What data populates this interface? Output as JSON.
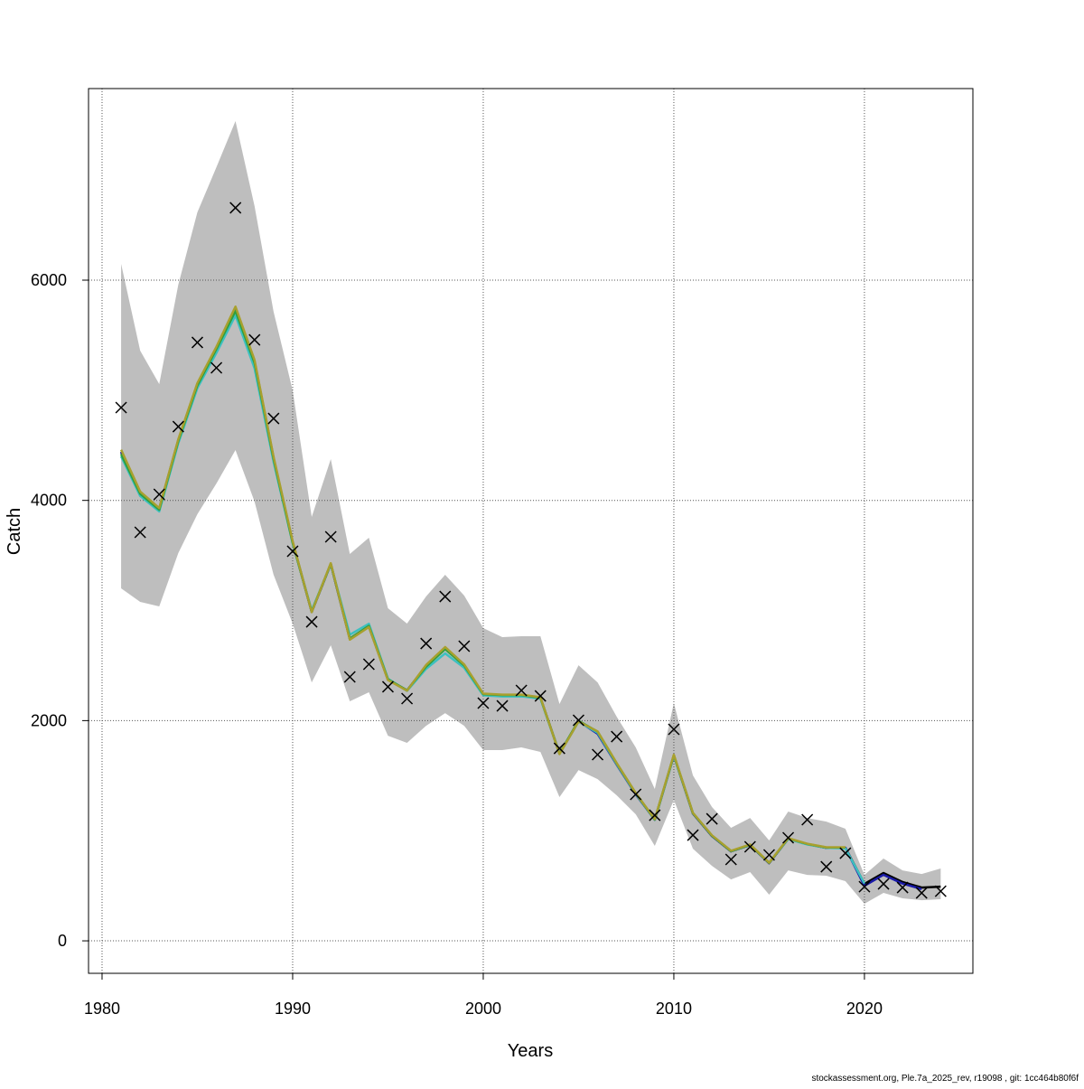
{
  "chart_data": {
    "type": "line",
    "xlabel": "Years",
    "ylabel": "Catch",
    "footnote": "stockassessment.org, Ple.7a_2025_rev, r19098 , git: 1cc464b80f6f",
    "x": [
      1981,
      1982,
      1983,
      1984,
      1985,
      1986,
      1987,
      1988,
      1989,
      1990,
      1991,
      1992,
      1993,
      1994,
      1995,
      1996,
      1997,
      1998,
      1999,
      2000,
      2001,
      2002,
      2003,
      2004,
      2005,
      2006,
      2007,
      2008,
      2009,
      2010,
      2011,
      2012,
      2013,
      2014,
      2015,
      2016,
      2017,
      2018,
      2019,
      2020,
      2021,
      2022,
      2023,
      2024
    ],
    "xlim": [
      1979.29,
      2025.69
    ],
    "xticks": [
      1980,
      1990,
      2000,
      2010,
      2020
    ],
    "ylim": [
      -295,
      7740
    ],
    "yticks": [
      0,
      2000,
      4000,
      6000
    ],
    "grid": true,
    "band": {
      "color": "#bebebe",
      "upper": [
        6148,
        5360,
        5056,
        5959,
        6616,
        7026,
        7445,
        6673,
        5713,
        4999,
        3850,
        4375,
        3513,
        3661,
        3021,
        2881,
        3127,
        3324,
        3136,
        2840,
        2758,
        2766,
        2766,
        2151,
        2503,
        2347,
        2036,
        1757,
        1379,
        2159,
        1502,
        1215,
        1026,
        1116,
        911,
        1174,
        1116,
        1083,
        1018,
        599,
        747,
        640,
        607,
        657
      ],
      "lower": [
        3201,
        3078,
        3037,
        3521,
        3874,
        4153,
        4457,
        3989,
        3324,
        2881,
        2347,
        2684,
        2175,
        2257,
        1863,
        1798,
        1953,
        2068,
        1953,
        1732,
        1732,
        1757,
        1716,
        1305,
        1551,
        1469,
        1322,
        1149,
        862,
        1280,
        837,
        681,
        558,
        624,
        419,
        640,
        599,
        591,
        542,
        337,
        435,
        386,
        369,
        378
      ]
    },
    "series": [
      {
        "color": "#000000",
        "values": [
          4440,
          4071,
          3923,
          4547,
          5056,
          5385,
          5729,
          5261,
          4383,
          3620,
          2988,
          3423,
          2742,
          2856,
          2372,
          2274,
          2495,
          2659,
          2503,
          2241,
          2233,
          2233,
          2208,
          1699,
          1995,
          1896,
          1609,
          1338,
          1100,
          1683,
          1157,
          952,
          813,
          870,
          706,
          927,
          878,
          845,
          845,
          517,
          616,
          534,
          484,
          492
        ]
      },
      {
        "color": "#1a1aa8",
        "values": [
          4440,
          4071,
          3923,
          4547,
          5056,
          5385,
          5729,
          5261,
          4383,
          3620,
          2988,
          3423,
          2742,
          2856,
          2372,
          2274,
          2495,
          2659,
          2503,
          2241,
          2233,
          2233,
          2208,
          1699,
          1995,
          1880,
          1600,
          1330,
          1100,
          1683,
          1157,
          952,
          813,
          870,
          706,
          927,
          878,
          845,
          845,
          500,
          600,
          520,
          470,
          null
        ]
      },
      {
        "color": "#3cc0c0",
        "values": [
          4400,
          4040,
          3900,
          4520,
          5020,
          5340,
          5680,
          5200,
          4350,
          3610,
          3000,
          3420,
          2780,
          2880,
          2380,
          2270,
          2470,
          2610,
          2480,
          2230,
          2220,
          2220,
          2200,
          1700,
          1990,
          1890,
          1605,
          1335,
          1100,
          1680,
          1160,
          955,
          815,
          870,
          710,
          925,
          875,
          845,
          840,
          520,
          null,
          null,
          null,
          null
        ]
      },
      {
        "color": "#2e9e3e",
        "values": [
          4420,
          4060,
          3915,
          4540,
          5045,
          5375,
          5720,
          5250,
          4375,
          3615,
          2990,
          3425,
          2745,
          2860,
          2375,
          2275,
          2490,
          2650,
          2500,
          2240,
          2232,
          2232,
          2207,
          1702,
          1998,
          1900,
          1612,
          1340,
          1102,
          1686,
          1160,
          955,
          815,
          872,
          708,
          930,
          880,
          848,
          848,
          null,
          null,
          null,
          null,
          null
        ]
      },
      {
        "color": "#a8a02e",
        "values": [
          4460,
          4080,
          3930,
          4555,
          5065,
          5395,
          5760,
          5275,
          4395,
          3630,
          2985,
          3430,
          2735,
          2850,
          2368,
          2272,
          2505,
          2668,
          2510,
          2245,
          2236,
          2236,
          2212,
          1696,
          1992,
          1902,
          1615,
          1342,
          1105,
          1690,
          1162,
          958,
          818,
          875,
          710,
          932,
          882,
          850,
          850,
          null,
          null,
          null,
          null,
          null
        ]
      }
    ],
    "observed": {
      "color": "#000000",
      "values": [
        4843,
        3710,
        4055,
        4670,
        5434,
        5204,
        6657,
        5458,
        4744,
        3538,
        2897,
        3669,
        2397,
        2512,
        2307,
        2200,
        2700,
        3127,
        2676,
        2159,
        2134,
        2274,
        2224,
        1748,
        2003,
        1691,
        1855,
        1330,
        1141,
        1921,
        960,
        1108,
        739,
        854,
        780,
        936,
        1100,
        673,
        796,
        492,
        517,
        484,
        435,
        451
      ]
    }
  }
}
